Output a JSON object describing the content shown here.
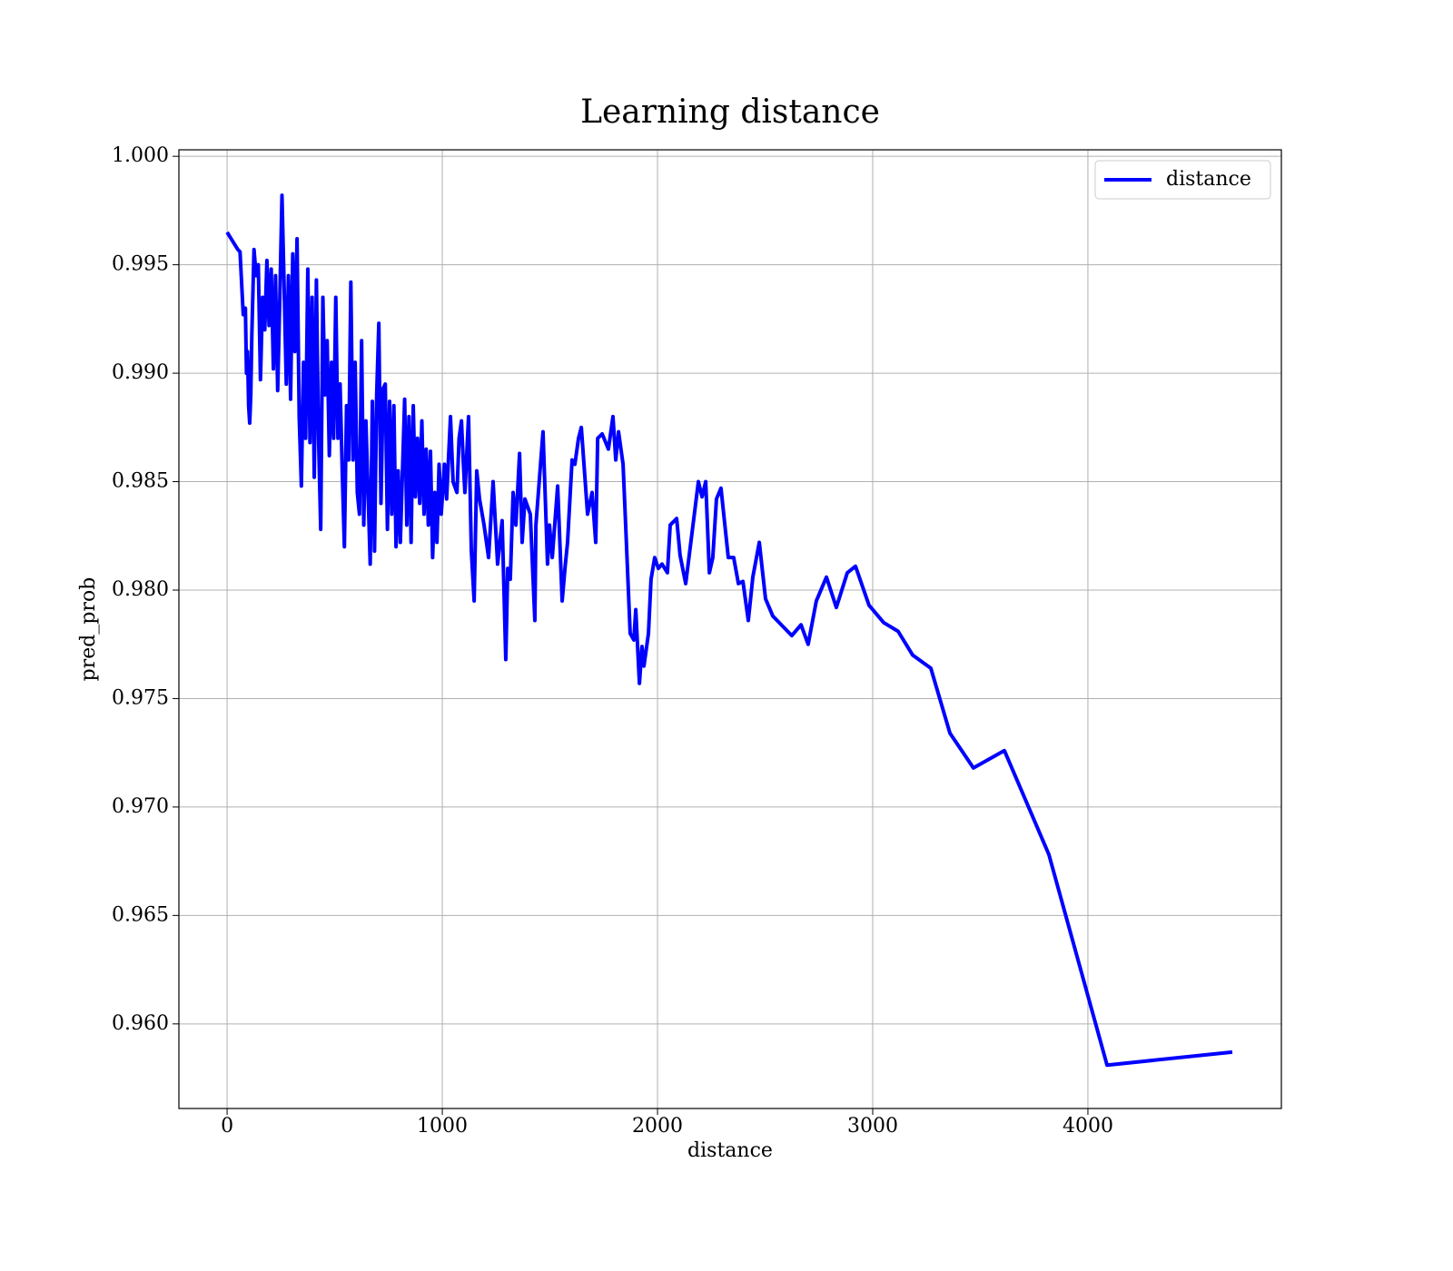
{
  "chart_data": {
    "type": "line",
    "title": "Learning distance",
    "xlabel": "distance",
    "ylabel": "pred_prob",
    "x": [
      0,
      50,
      60,
      75,
      85,
      90,
      95,
      100,
      105,
      110,
      115,
      125,
      135,
      145,
      155,
      165,
      175,
      185,
      195,
      205,
      215,
      225,
      235,
      245,
      255,
      265,
      275,
      285,
      295,
      305,
      315,
      325,
      335,
      345,
      355,
      365,
      375,
      385,
      395,
      405,
      415,
      425,
      435,
      445,
      455,
      465,
      475,
      485,
      495,
      505,
      515,
      525,
      535,
      545,
      555,
      565,
      575,
      585,
      595,
      605,
      615,
      625,
      635,
      645,
      655,
      665,
      675,
      685,
      695,
      705,
      715,
      725,
      735,
      745,
      755,
      765,
      775,
      785,
      795,
      805,
      815,
      825,
      835,
      845,
      855,
      865,
      875,
      885,
      895,
      905,
      915,
      925,
      935,
      945,
      955,
      965,
      975,
      985,
      995,
      1010,
      1020,
      1038,
      1050,
      1068,
      1078,
      1089,
      1098,
      1105,
      1122,
      1135,
      1148,
      1160,
      1173,
      1194,
      1215,
      1236,
      1257,
      1278,
      1295,
      1304,
      1316,
      1329,
      1342,
      1359,
      1371,
      1384,
      1409,
      1430,
      1435,
      1468,
      1489,
      1498,
      1511,
      1536,
      1557,
      1570,
      1582,
      1603,
      1616,
      1633,
      1646,
      1675,
      1696,
      1713,
      1722,
      1743,
      1772,
      1793,
      1806,
      1819,
      1840,
      1852,
      1873,
      1890,
      1899,
      1916,
      1928,
      1937,
      1958,
      1970,
      1987,
      2004,
      2021,
      2046,
      2059,
      2089,
      2105,
      2131,
      2190,
      2207,
      2224,
      2241,
      2257,
      2274,
      2295,
      2329,
      2354,
      2376,
      2397,
      2422,
      2443,
      2473,
      2502,
      2536,
      2624,
      2667,
      2700,
      2738,
      2785,
      2831,
      2882,
      2920,
      2983,
      3051,
      3118,
      3186,
      3270,
      3359,
      3468,
      3612,
      3819,
      4089,
      4671
    ],
    "series": [
      {
        "name": "distance",
        "color": "#0000ff",
        "values": [
          0.9965,
          0.9957,
          0.9956,
          0.9927,
          0.993,
          0.99,
          0.991,
          0.9885,
          0.9877,
          0.989,
          0.9918,
          0.9957,
          0.9945,
          0.995,
          0.9897,
          0.9935,
          0.992,
          0.9952,
          0.9922,
          0.9948,
          0.9902,
          0.9945,
          0.9892,
          0.9935,
          0.9982,
          0.994,
          0.9895,
          0.9945,
          0.9888,
          0.9955,
          0.991,
          0.9962,
          0.988,
          0.9848,
          0.9905,
          0.987,
          0.9948,
          0.9868,
          0.9935,
          0.9852,
          0.9943,
          0.987,
          0.9828,
          0.9935,
          0.989,
          0.9915,
          0.9862,
          0.9905,
          0.987,
          0.9935,
          0.987,
          0.9895,
          0.9855,
          0.982,
          0.9885,
          0.986,
          0.9942,
          0.986,
          0.9905,
          0.9845,
          0.9835,
          0.9915,
          0.983,
          0.9878,
          0.9845,
          0.9812,
          0.9887,
          0.9818,
          0.989,
          0.9923,
          0.984,
          0.9893,
          0.9895,
          0.9828,
          0.9887,
          0.9835,
          0.9885,
          0.982,
          0.9855,
          0.9822,
          0.9855,
          0.9888,
          0.983,
          0.988,
          0.9822,
          0.9885,
          0.9843,
          0.987,
          0.984,
          0.9878,
          0.9835,
          0.9865,
          0.983,
          0.9864,
          0.9815,
          0.9845,
          0.9822,
          0.9858,
          0.9835,
          0.9858,
          0.9842,
          0.988,
          0.985,
          0.9845,
          0.987,
          0.9878,
          0.9858,
          0.9845,
          0.988,
          0.9818,
          0.9795,
          0.9855,
          0.9842,
          0.983,
          0.9815,
          0.985,
          0.9812,
          0.9832,
          0.9768,
          0.981,
          0.9805,
          0.9845,
          0.983,
          0.9863,
          0.9822,
          0.9842,
          0.9835,
          0.9786,
          0.983,
          0.9873,
          0.9812,
          0.983,
          0.9815,
          0.9848,
          0.9795,
          0.981,
          0.9822,
          0.986,
          0.9858,
          0.987,
          0.9875,
          0.9835,
          0.9845,
          0.9822,
          0.987,
          0.9872,
          0.9865,
          0.988,
          0.986,
          0.9873,
          0.9858,
          0.983,
          0.978,
          0.9777,
          0.9791,
          0.9757,
          0.9774,
          0.9765,
          0.978,
          0.9805,
          0.9815,
          0.981,
          0.9812,
          0.9808,
          0.983,
          0.9833,
          0.9816,
          0.9803,
          0.985,
          0.9843,
          0.985,
          0.9808,
          0.9815,
          0.9842,
          0.9847,
          0.9815,
          0.9815,
          0.9803,
          0.9804,
          0.9786,
          0.9806,
          0.9822,
          0.9796,
          0.9788,
          0.9779,
          0.9784,
          0.9775,
          0.9795,
          0.9806,
          0.9792,
          0.9808,
          0.9811,
          0.9793,
          0.9785,
          0.9781,
          0.977,
          0.9764,
          0.9734,
          0.9718,
          0.9726,
          0.9678,
          0.9581,
          0.9587
        ]
      }
    ],
    "xlim": [
      -224,
      4899
    ],
    "ylim": [
      0.9561,
      1.0003
    ],
    "xticks": [
      0,
      1000,
      2000,
      3000,
      4000
    ],
    "yticks": [
      {
        "value": 0.96,
        "label": "0.960"
      },
      0.965,
      {
        "value": 0.97,
        "label": "0.970"
      },
      0.975,
      {
        "value": 0.98,
        "label": "0.980"
      },
      0.985,
      {
        "value": 0.99,
        "label": "0.990"
      },
      0.995,
      {
        "value": 1,
        "label": "1.000"
      }
    ],
    "grid": true,
    "legend": "upper-right"
  }
}
